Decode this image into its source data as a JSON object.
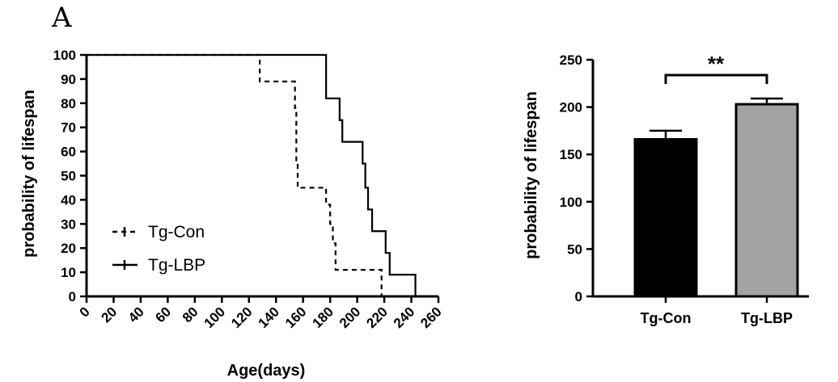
{
  "panel_letter": "A",
  "chart_data": [
    {
      "type": "line",
      "subtype": "kaplan-meier step",
      "xlabel": "Age(days)",
      "ylabel": "probability of lifespan",
      "xlim": [
        0,
        260
      ],
      "ylim": [
        0,
        100
      ],
      "x_ticks": [
        "0",
        "20",
        "40",
        "60",
        "80",
        "100",
        "120",
        "140",
        "160",
        "180",
        "200",
        "220",
        "240",
        "260"
      ],
      "y_ticks": [
        "0",
        "10",
        "20",
        "30",
        "40",
        "50",
        "60",
        "70",
        "80",
        "90",
        "100"
      ],
      "legend_position": "bottom-left",
      "series": [
        {
          "name": "Tg-Con",
          "style": "dashed",
          "color": "#000000",
          "steps": [
            [
              0,
              100
            ],
            [
              128,
              100
            ],
            [
              128,
              89
            ],
            [
              154,
              89
            ],
            [
              154,
              78
            ],
            [
              155,
              55
            ],
            [
              156,
              45
            ],
            [
              177,
              45
            ],
            [
              177,
              38
            ],
            [
              180,
              30
            ],
            [
              182,
              22
            ],
            [
              184,
              11
            ],
            [
              218,
              11
            ],
            [
              218,
              0
            ]
          ]
        },
        {
          "name": "Tg-LBP",
          "style": "solid",
          "color": "#000000",
          "steps": [
            [
              0,
              100
            ],
            [
              177,
              100
            ],
            [
              177,
              82
            ],
            [
              187,
              82
            ],
            [
              187,
              73
            ],
            [
              189,
              64
            ],
            [
              204,
              64
            ],
            [
              204,
              55
            ],
            [
              206,
              45
            ],
            [
              208,
              36
            ],
            [
              211,
              27
            ],
            [
              221,
              27
            ],
            [
              221,
              18
            ],
            [
              224,
              9
            ],
            [
              243,
              9
            ],
            [
              243,
              0
            ]
          ]
        }
      ]
    },
    {
      "type": "bar",
      "ylabel": "probability of lifespan",
      "ylim": [
        0,
        250
      ],
      "y_ticks": [
        "0",
        "50",
        "100",
        "150",
        "200",
        "250"
      ],
      "categories": [
        "Tg-Con",
        "Tg-LBP"
      ],
      "values": [
        166,
        203
      ],
      "errors": [
        9,
        6
      ],
      "colors": [
        "#000000",
        "#a3a3a6"
      ],
      "significance": "**"
    }
  ]
}
